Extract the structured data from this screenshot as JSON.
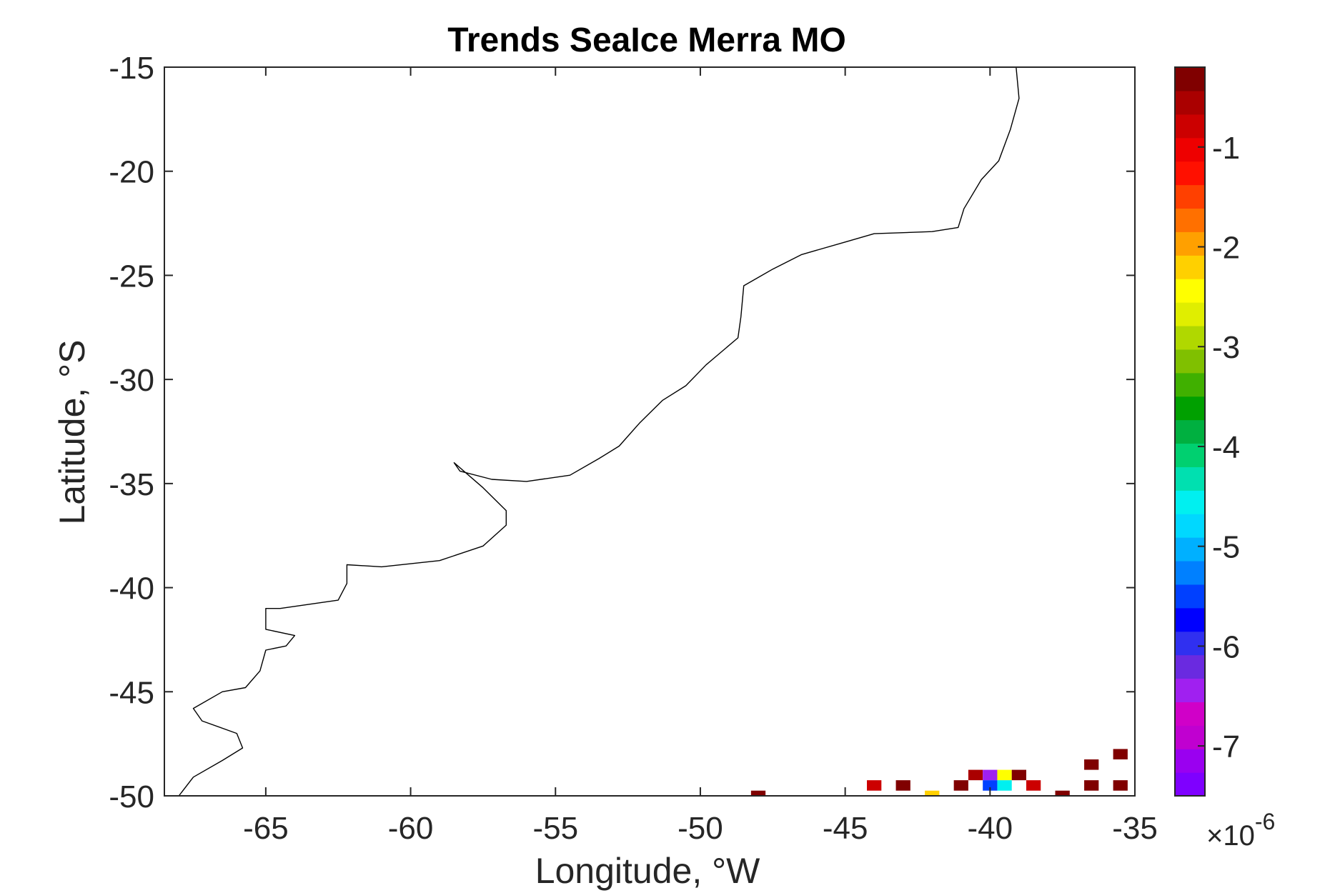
{
  "figure": {
    "title": "Trends SeaIce Merra MO",
    "xlabel": "Longitude, °W",
    "ylabel": "Latitude, °S",
    "colorbar": {
      "multiplier_base": "×10",
      "multiplier_exp": "-6"
    }
  },
  "chart_data": {
    "type": "heatmap",
    "title": "Trends SeaIce Merra MO",
    "xlabel": "Longitude, °W",
    "ylabel": "Latitude, °S",
    "xlim": [
      -68.5,
      -35
    ],
    "ylim": [
      -50,
      -15
    ],
    "xticks": [
      -65,
      -60,
      -55,
      -50,
      -45,
      -40,
      -35
    ],
    "yticks": [
      -15,
      -20,
      -25,
      -30,
      -35,
      -40,
      -45,
      -50
    ],
    "grid": false,
    "colorbar": {
      "ticks": [
        -1,
        -2,
        -3,
        -4,
        -5,
        -6,
        -7
      ],
      "range": [
        -7.5,
        -0.2
      ],
      "multiplier": "×10^-6",
      "colormap": [
        "#7f00ff",
        "#9a00f0",
        "#c000d0",
        "#d000c8",
        "#a020f0",
        "#6a2ae0",
        "#3030f0",
        "#0000ff",
        "#0040ff",
        "#0080ff",
        "#00b0ff",
        "#00d8ff",
        "#00f0f0",
        "#00e0b0",
        "#00d070",
        "#00b040",
        "#00a000",
        "#40b000",
        "#80c000",
        "#b0d800",
        "#e0ee00",
        "#ffff00",
        "#ffd000",
        "#ffa000",
        "#ff7000",
        "#ff4000",
        "#ff1000",
        "#ee0000",
        "#cc0000",
        "#aa0000",
        "#800000"
      ]
    },
    "cells": [
      {
        "lon": -48,
        "lat": -50,
        "value": -0.3
      },
      {
        "lon": -44,
        "lat": -49.5,
        "value": -0.7
      },
      {
        "lon": -43,
        "lat": -49.5,
        "value": -0.3
      },
      {
        "lon": -42,
        "lat": -50,
        "value": -2.2
      },
      {
        "lon": -41,
        "lat": -49.5,
        "value": -0.3
      },
      {
        "lon": -40.5,
        "lat": -49,
        "value": -0.5
      },
      {
        "lon": -40,
        "lat": -49,
        "value": -6.4
      },
      {
        "lon": -40,
        "lat": -49.5,
        "value": -5.5
      },
      {
        "lon": -39.5,
        "lat": -49,
        "value": -2.5
      },
      {
        "lon": -39.5,
        "lat": -49.5,
        "value": -4.6
      },
      {
        "lon": -39,
        "lat": -49,
        "value": -0.4
      },
      {
        "lon": -38.5,
        "lat": -49.5,
        "value": -0.8
      },
      {
        "lon": -37.5,
        "lat": -50,
        "value": -0.4
      },
      {
        "lon": -36.5,
        "lat": -48.5,
        "value": -0.3
      },
      {
        "lon": -36.5,
        "lat": -49.5,
        "value": -0.3
      },
      {
        "lon": -35.5,
        "lat": -48,
        "value": -0.2
      },
      {
        "lon": -35.5,
        "lat": -49.5,
        "value": -0.2
      }
    ],
    "coastline": {
      "description": "Atlantic coast of South America",
      "points": [
        [
          -39.1,
          -15
        ],
        [
          -39.0,
          -16.5
        ],
        [
          -39.3,
          -18.0
        ],
        [
          -39.7,
          -19.5
        ],
        [
          -40.3,
          -20.4
        ],
        [
          -40.9,
          -21.8
        ],
        [
          -41.1,
          -22.7
        ],
        [
          -42.0,
          -22.9
        ],
        [
          -44.0,
          -23.0
        ],
        [
          -45.0,
          -23.4
        ],
        [
          -46.5,
          -24.0
        ],
        [
          -47.5,
          -24.7
        ],
        [
          -48.5,
          -25.5
        ],
        [
          -48.6,
          -27.0
        ],
        [
          -48.7,
          -28.0
        ],
        [
          -49.8,
          -29.3
        ],
        [
          -50.5,
          -30.3
        ],
        [
          -51.3,
          -31.0
        ],
        [
          -52.1,
          -32.1
        ],
        [
          -52.8,
          -33.2
        ],
        [
          -53.5,
          -33.8
        ],
        [
          -54.5,
          -34.6
        ],
        [
          -56.0,
          -34.9
        ],
        [
          -57.2,
          -34.8
        ],
        [
          -58.3,
          -34.4
        ],
        [
          -58.5,
          -34.0
        ],
        [
          -57.5,
          -35.2
        ],
        [
          -56.7,
          -36.3
        ],
        [
          -56.7,
          -37.0
        ],
        [
          -57.5,
          -38.0
        ],
        [
          -59.0,
          -38.7
        ],
        [
          -61.0,
          -39.0
        ],
        [
          -62.2,
          -38.9
        ],
        [
          -62.2,
          -39.8
        ],
        [
          -62.5,
          -40.6
        ],
        [
          -64.5,
          -41.0
        ],
        [
          -65.0,
          -41.0
        ],
        [
          -65.0,
          -42.0
        ],
        [
          -64.0,
          -42.3
        ],
        [
          -64.3,
          -42.8
        ],
        [
          -65.0,
          -43.0
        ],
        [
          -65.2,
          -44.0
        ],
        [
          -65.7,
          -44.8
        ],
        [
          -66.5,
          -45.0
        ],
        [
          -67.5,
          -45.8
        ],
        [
          -67.2,
          -46.4
        ],
        [
          -66.0,
          -47.0
        ],
        [
          -65.8,
          -47.7
        ],
        [
          -66.5,
          -48.3
        ],
        [
          -67.5,
          -49.1
        ],
        [
          -68.0,
          -50.0
        ],
        [
          -68.5,
          -50.0
        ]
      ]
    }
  }
}
